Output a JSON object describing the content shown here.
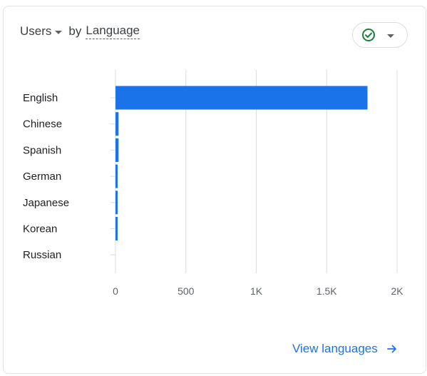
{
  "card": {
    "metric_label": "Users",
    "by_label": "by",
    "dimension_label": "Language",
    "status_icon": "check-circle-icon",
    "footer_link": "View languages",
    "footer_icon": "arrow-right-icon"
  },
  "colors": {
    "bar": "#1a73e8",
    "status_green": "#188038",
    "link": "#1a73e8"
  },
  "chart_data": {
    "type": "bar",
    "orientation": "horizontal",
    "categories": [
      "English",
      "Chinese",
      "Spanish",
      "German",
      "Japanese",
      "Korean",
      "Russian"
    ],
    "values": [
      1790,
      22,
      22,
      8,
      8,
      8,
      0
    ],
    "xlim": [
      0,
      2000
    ],
    "xticks": [
      0,
      500,
      1000,
      1500,
      2000
    ],
    "xtick_labels": [
      "0",
      "500",
      "1K",
      "1.5K",
      "2K"
    ],
    "grid": true
  }
}
